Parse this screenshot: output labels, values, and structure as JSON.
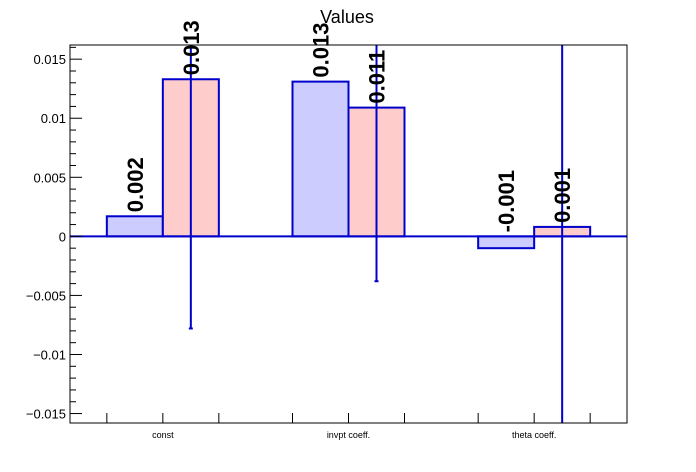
{
  "chart_data": {
    "type": "bar",
    "title": "Values",
    "categories": [
      "const",
      "invpt coeff.",
      "theta coeff."
    ],
    "ylim": [
      -0.0158,
      0.0162
    ],
    "yticks": [
      {
        "v": 0.015,
        "label": "0.015"
      },
      {
        "v": 0.01,
        "label": "0.01"
      },
      {
        "v": 0.005,
        "label": "0.005"
      },
      {
        "v": 0,
        "label": "0"
      },
      {
        "v": -0.005,
        "label": "−0.005"
      },
      {
        "v": -0.01,
        "label": "−0.01"
      },
      {
        "v": -0.015,
        "label": "−0.015"
      }
    ],
    "series": [
      {
        "color": "#ccccff",
        "edge": "#0000cc",
        "values": [
          0.0017,
          0.0131,
          -0.001
        ],
        "labels": [
          "0.002",
          "0.013",
          "-0.001"
        ],
        "errors": [
          null,
          null,
          null
        ]
      },
      {
        "color": "#ffcccc",
        "edge": "#0000cc",
        "values": [
          0.0133,
          0.0109,
          0.0008
        ],
        "labels": [
          "0.013",
          "0.011",
          "0.001"
        ],
        "errors": [
          0.0211,
          0.0147,
          0.03
        ]
      }
    ],
    "grid": false,
    "legend": "none"
  }
}
